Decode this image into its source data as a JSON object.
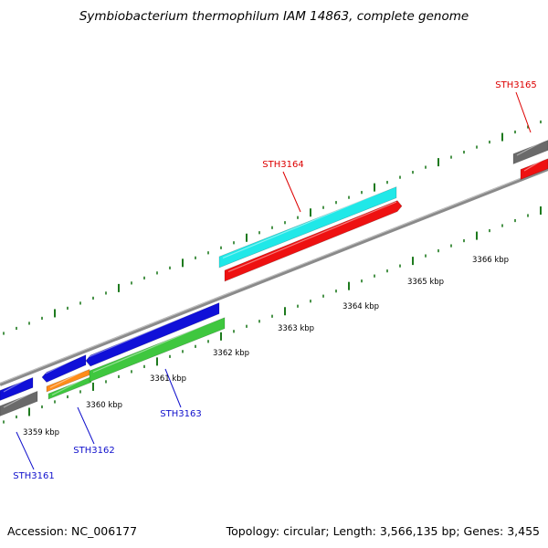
{
  "title": "Symbiobacterium thermophilum IAM 14863, complete genome",
  "footer": {
    "accession": "Accession: NC_006177",
    "topology": "Topology: circular; Length: 3,566,135 bp; Genes: 3,455"
  },
  "colors": {
    "backbone": "#8a8a8a",
    "tick": "#1e7a1e",
    "blue": "#1010d8",
    "cyan": "#20e8e8",
    "red": "#ee1111",
    "green": "#3fc73f",
    "orange": "#ff8c1a",
    "gray": "#6a6a6a",
    "label_blue": "#1010cc",
    "label_red": "#dd0000"
  },
  "scale_labels": [
    "3359 kbp",
    "3360 kbp",
    "3361 kbp",
    "3362 kbp",
    "3363 kbp",
    "3364 kbp",
    "3365 kbp",
    "3366 kbp"
  ],
  "gene_labels": [
    {
      "id": "STH3161",
      "color": "blue"
    },
    {
      "id": "STH3162",
      "color": "blue"
    },
    {
      "id": "STH3163",
      "color": "blue"
    },
    {
      "id": "STH3164",
      "color": "red"
    },
    {
      "id": "STH3165",
      "color": "red"
    }
  ]
}
